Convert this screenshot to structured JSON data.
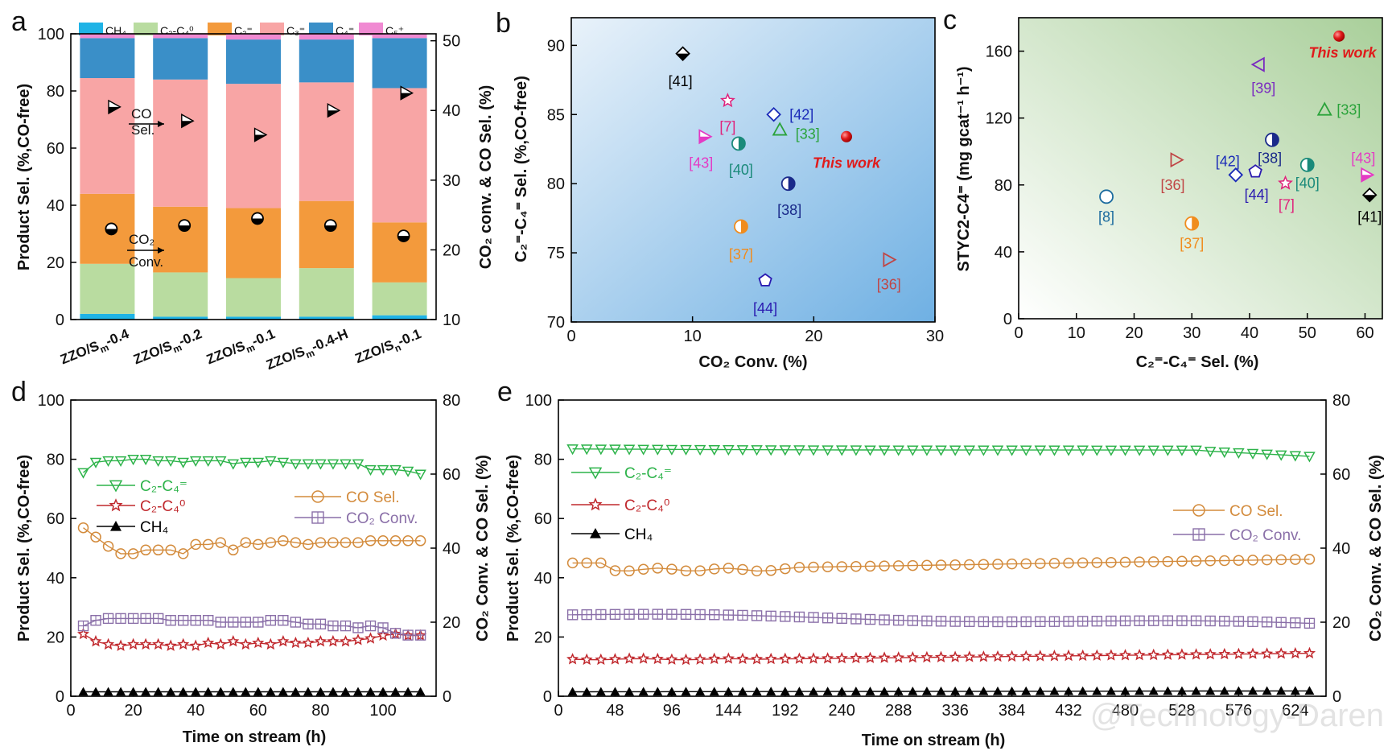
{
  "watermark": "@Technology-Daren",
  "colors": {
    "CH4": "#1fb3e6",
    "C2C4_0": "#b9dca0",
    "C2_eq": "#f39a3c",
    "C3_eq": "#f8a5a5",
    "C4_eq": "#3a8fc8",
    "C5_plus": "#f08ad2",
    "C2C4_eq_line": "#2db34a",
    "C2C4_0_line": "#c0282d",
    "CH4_line": "#000000",
    "CO_sel_line": "#d38b3c",
    "CO2_conv_line": "#8a6fa8"
  },
  "panels": {
    "a": {
      "letter": "a",
      "ylabel": "Product Sel. (%,CO-free)",
      "y2label": "CO₂ conv. & CO Sel. (%)",
      "yticks": [
        "0",
        "20",
        "40",
        "60",
        "80",
        "100"
      ],
      "y2ticks": [
        "10",
        "20",
        "30",
        "40",
        "50"
      ],
      "legend": [
        {
          "key": "CH4",
          "text": "CH₄"
        },
        {
          "key": "C2C4_0",
          "text": "C₂-C₄⁰"
        },
        {
          "key": "C2_eq",
          "text": "C₂⁼"
        },
        {
          "key": "C3_eq",
          "text": "C₃⁼"
        },
        {
          "key": "C4_eq",
          "text": "C₄⁼"
        },
        {
          "key": "C5_plus",
          "text": "C₅⁺"
        }
      ],
      "annot_co": "CO",
      "annot_sel": "Sel.",
      "annot_co2": "CO₂",
      "annot_conv": "Conv.",
      "categories": [
        "ZZO/Sm-0.4",
        "ZZO/Sm-0.2",
        "ZZO/Sm-0.1",
        "ZZO/Sm-0.4-H",
        "ZZO/Sn-0.1"
      ],
      "cat_main": [
        "ZZO/S",
        "ZZO/S",
        "ZZO/S",
        "ZZO/S",
        "ZZO/S"
      ],
      "cat_sub": [
        "m",
        "m",
        "m",
        "m",
        "n"
      ],
      "cat_tail": [
        "-0.4",
        "-0.2",
        "-0.1",
        "-0.4-H",
        "-0.1"
      ]
    },
    "b": {
      "letter": "b",
      "xlabel": "CO₂ Conv. (%)",
      "ylabel": "C₂⁼-C₄⁼ Sel. (%,CO-free)",
      "xticks": [
        "0",
        "10",
        "20",
        "30"
      ],
      "yticks": [
        "70",
        "75",
        "80",
        "85",
        "90"
      ],
      "this_work": "This work"
    },
    "c": {
      "letter": "c",
      "xlabel": "C₂⁼-C₄⁼ Sel. (%)",
      "ylabel": "STYC2-C4⁼ (mg gcat⁻¹ h⁻¹)",
      "xticks": [
        "0",
        "10",
        "20",
        "30",
        "40",
        "50",
        "60"
      ],
      "yticks": [
        "0",
        "40",
        "80",
        "120",
        "160"
      ],
      "this_work": "This work"
    },
    "d": {
      "letter": "d",
      "xlabel": "Time on stream (h)",
      "ylabel": "Product Sel. (%,CO-free)",
      "y2label": "CO₂ Conv. & CO Sel. (%)",
      "xticks": [
        "0",
        "20",
        "40",
        "60",
        "80",
        "100"
      ],
      "yticks": [
        "0",
        "20",
        "40",
        "60",
        "80",
        "100"
      ],
      "y2ticks": [
        "0",
        "20",
        "40",
        "60",
        "80"
      ],
      "legend": [
        "C₂-C₄⁼",
        "C₂-C₄⁰",
        "CH₄",
        "CO Sel.",
        "CO₂ Conv."
      ]
    },
    "e": {
      "letter": "e",
      "xlabel": "Time on stream (h)",
      "ylabel": "Product Sel. (%,CO-free)",
      "y2label": "CO₂ Conv. & CO Sel. (%)",
      "xticks": [
        "0",
        "48",
        "96",
        "144",
        "192",
        "240",
        "288",
        "336",
        "384",
        "432",
        "480",
        "528",
        "576",
        "624"
      ],
      "yticks": [
        "0",
        "20",
        "40",
        "60",
        "80",
        "100"
      ],
      "y2ticks": [
        "0",
        "20",
        "40",
        "60",
        "80"
      ],
      "legend": [
        "C₂-C₄⁼",
        "C₂-C₄⁰",
        "CH₄",
        "CO Sel.",
        "CO₂ Conv."
      ]
    }
  },
  "chart_data": [
    {
      "panel": "a",
      "type": "bar",
      "stacked": true,
      "categories": [
        "ZZO/Sm-0.4",
        "ZZO/Sm-0.2",
        "ZZO/Sm-0.1",
        "ZZO/Sm-0.4-H",
        "ZZO/Sn-0.1"
      ],
      "series": [
        {
          "name": "CH₄",
          "key": "CH4",
          "values": [
            2,
            1,
            1,
            1,
            1.5
          ]
        },
        {
          "name": "C₂-C₄⁰",
          "key": "C2C4_0",
          "values": [
            17.5,
            15.5,
            13.5,
            17,
            11.5
          ]
        },
        {
          "name": "C₂⁼",
          "key": "C2_eq",
          "values": [
            24.5,
            23,
            24.5,
            23.5,
            21
          ]
        },
        {
          "name": "C₃⁼",
          "key": "C3_eq",
          "values": [
            40.5,
            44.5,
            43.5,
            41.5,
            47
          ]
        },
        {
          "name": "C₄⁼",
          "key": "C4_eq",
          "values": [
            14,
            14.5,
            15.5,
            15,
            17.5
          ]
        },
        {
          "name": "C₅⁺",
          "key": "C5_plus",
          "values": [
            1.5,
            1.5,
            2,
            2,
            1.5
          ]
        }
      ],
      "co_sel_right_axis": [
        40.5,
        38.5,
        36.5,
        40,
        42.5
      ],
      "co2_conv_right_axis": [
        23,
        23.5,
        24.5,
        23.5,
        22
      ],
      "ylim": [
        0,
        100
      ],
      "y2lim": [
        10,
        51
      ]
    },
    {
      "panel": "b",
      "type": "scatter",
      "xlim": [
        0,
        30
      ],
      "ylim": [
        70,
        92
      ],
      "points": [
        {
          "label": "[41]",
          "x": 9.2,
          "y": 89.4,
          "marker": "diamond-half",
          "color": "#000000",
          "lx": -0.2,
          "ly": -2.0
        },
        {
          "label": "[7]",
          "x": 12.9,
          "y": 86.0,
          "marker": "star",
          "color": "#e0227b",
          "lx": 0,
          "ly": -1.9
        },
        {
          "label": "[43]",
          "x": 11.0,
          "y": 83.4,
          "marker": "tri-right-fill",
          "color": "#e43ac4",
          "lx": -0.3,
          "ly": -1.9
        },
        {
          "label": "[40]",
          "x": 13.8,
          "y": 82.9,
          "marker": "circle-half",
          "color": "#1a8a7a",
          "lx": 0.2,
          "ly": -1.9
        },
        {
          "label": "[42]",
          "x": 16.7,
          "y": 85.0,
          "marker": "diamond",
          "color": "#1a2ab8",
          "lx": 2.3,
          "ly": 0
        },
        {
          "label": "[33]",
          "x": 17.2,
          "y": 83.9,
          "marker": "triangle",
          "color": "#2aa33a",
          "lx": 2.3,
          "ly": -0.3
        },
        {
          "label": "[38]",
          "x": 17.9,
          "y": 80.0,
          "marker": "circle-half",
          "color": "#1a2a8a",
          "lx": 0.1,
          "ly": -1.9
        },
        {
          "label": "[37]",
          "x": 14.0,
          "y": 76.9,
          "marker": "circle-half",
          "color": "#f08c1e",
          "lx": 0,
          "ly": -2.0
        },
        {
          "label": "[44]",
          "x": 16.0,
          "y": 73.0,
          "marker": "pentagon",
          "color": "#2a1ab0",
          "lx": 0,
          "ly": -2.0
        },
        {
          "label": "[36]",
          "x": 26.2,
          "y": 74.5,
          "marker": "tri-right",
          "color": "#c04545",
          "lx": 0,
          "ly": -1.8
        },
        {
          "label": "This work",
          "x": 22.7,
          "y": 83.4,
          "marker": "ball",
          "color": "#e01b1b",
          "lx": 0,
          "ly": -1.9
        }
      ]
    },
    {
      "panel": "c",
      "type": "scatter",
      "xlim": [
        0,
        63
      ],
      "ylim": [
        0,
        180
      ],
      "points": [
        {
          "label": "[8]",
          "x": 15.2,
          "y": 73,
          "marker": "circle",
          "color": "#1a6a9e",
          "lx": 0,
          "ly": -12
        },
        {
          "label": "[37]",
          "x": 30.0,
          "y": 57,
          "marker": "circle-half",
          "color": "#f08c1e",
          "lx": 0,
          "ly": -12
        },
        {
          "label": "[36]",
          "x": 27.3,
          "y": 95,
          "marker": "tri-right",
          "color": "#c04545",
          "lx": -0.6,
          "ly": -15
        },
        {
          "label": "[42]",
          "x": 37.6,
          "y": 86,
          "marker": "diamond",
          "color": "#1a2ab8",
          "lx": -1.4,
          "ly": 8
        },
        {
          "label": "[44]",
          "x": 41.0,
          "y": 88,
          "marker": "pentagon",
          "color": "#2a1ab0",
          "lx": 0.2,
          "ly": -14
        },
        {
          "label": "[38]",
          "x": 43.9,
          "y": 107,
          "marker": "circle-half",
          "color": "#1a2a8a",
          "lx": -0.4,
          "ly": -11
        },
        {
          "label": "[39]",
          "x": 41.6,
          "y": 152,
          "marker": "tri-left",
          "color": "#7a2ac0",
          "lx": 0.8,
          "ly": -14
        },
        {
          "label": "[40]",
          "x": 50.0,
          "y": 92,
          "marker": "circle-half",
          "color": "#1a8a7a",
          "lx": 0,
          "ly": -11
        },
        {
          "label": "[7]",
          "x": 46.2,
          "y": 81,
          "marker": "star",
          "color": "#e0227b",
          "lx": 0.2,
          "ly": -13
        },
        {
          "label": "[33]",
          "x": 53.0,
          "y": 125,
          "marker": "triangle",
          "color": "#2aa33a",
          "lx": 4.2,
          "ly": 0
        },
        {
          "label": "[43]",
          "x": 60.3,
          "y": 86,
          "marker": "tri-right-fill",
          "color": "#e43ac4",
          "lx": -0.6,
          "ly": 10
        },
        {
          "label": "[41]",
          "x": 60.8,
          "y": 74,
          "marker": "diamond-half",
          "color": "#000000",
          "lx": 0,
          "ly": -13
        },
        {
          "label": "This work",
          "x": 55.5,
          "y": 169,
          "marker": "ball",
          "color": "#e01b1b",
          "lx": 0.6,
          "ly": -10
        }
      ]
    },
    {
      "panel": "d",
      "type": "line",
      "x": [
        4,
        8,
        12,
        16,
        20,
        24,
        28,
        32,
        36,
        40,
        44,
        48,
        52,
        56,
        60,
        64,
        68,
        72,
        76,
        80,
        84,
        88,
        92,
        96,
        100,
        104,
        108,
        112
      ],
      "series": [
        {
          "name": "C₂-C₄⁼",
          "axis": "left",
          "values": [
            75.5,
            79,
            79.5,
            79.5,
            80,
            80,
            79.5,
            79.5,
            79,
            79.5,
            79.5,
            79.5,
            78.5,
            79,
            79,
            79.5,
            79,
            78.5,
            78.5,
            78.5,
            78.5,
            78.5,
            78.5,
            76.5,
            76.5,
            76.5,
            76,
            75
          ]
        },
        {
          "name": "C₂-C₄⁰",
          "axis": "left",
          "values": [
            21,
            18.5,
            17.5,
            17,
            17.5,
            17.5,
            17.5,
            17,
            17.5,
            17,
            18,
            17.5,
            18.5,
            17.5,
            18,
            17.5,
            18.5,
            18,
            18,
            18.5,
            18.5,
            18.5,
            19,
            19.5,
            20.5,
            21,
            20.5,
            20.5
          ]
        },
        {
          "name": "CH₄",
          "axis": "left",
          "values": [
            1.5,
            1.5,
            1.5,
            1.5,
            1.5,
            1.5,
            1.5,
            1.5,
            1.5,
            1.5,
            1.5,
            1.5,
            1.5,
            1.5,
            1.5,
            1.5,
            1.5,
            1.5,
            1.5,
            1.5,
            1.5,
            1.5,
            1.5,
            1.5,
            1.5,
            1.5,
            1.5,
            1.5
          ]
        },
        {
          "name": "CO Sel.",
          "axis": "right",
          "values": [
            45.5,
            43,
            40.5,
            38.5,
            38.5,
            39.5,
            39.5,
            39.5,
            38.5,
            41,
            41,
            41.5,
            39.5,
            41.5,
            41,
            41.5,
            42,
            41.5,
            41,
            41.5,
            41.5,
            41.5,
            41.5,
            42,
            42,
            42,
            42,
            42
          ]
        },
        {
          "name": "CO₂ Conv.",
          "axis": "right",
          "values": [
            19,
            20.5,
            21,
            21,
            21,
            21,
            21,
            20.5,
            20.5,
            20.5,
            20.5,
            20,
            20,
            20,
            20,
            20.5,
            20.5,
            20,
            19.5,
            19.5,
            19,
            19,
            18.5,
            19,
            18.5,
            17,
            16.5,
            16.5
          ]
        }
      ],
      "xlim": [
        0,
        117
      ],
      "ylim": [
        0,
        100
      ],
      "y2lim": [
        0,
        80
      ]
    },
    {
      "panel": "e",
      "type": "line",
      "x": "12 to 636 h, every 12 h (53 points)",
      "x_start": 12,
      "x_step": 12,
      "x_count": 53,
      "series": [
        {
          "name": "C₂-C₄⁼",
          "axis": "left",
          "start": 83.5,
          "end": 81,
          "profile": "flat-then-decline"
        },
        {
          "name": "C₂-C₄⁰",
          "axis": "left",
          "start": 12.5,
          "end": 14.5,
          "profile": "flat-then-rise"
        },
        {
          "name": "CH₄",
          "axis": "left",
          "start": 1.5,
          "end": 1.8,
          "profile": "flat"
        },
        {
          "name": "CO Sel.",
          "axis": "right",
          "start": 36,
          "end": 37,
          "profile": "dip-then-flat"
        },
        {
          "name": "CO₂ Conv.",
          "axis": "right",
          "start": 22,
          "end": 19.5,
          "profile": "slow-decline"
        }
      ],
      "xlim": [
        0,
        650
      ],
      "ylim": [
        0,
        100
      ],
      "y2lim": [
        0,
        80
      ]
    }
  ]
}
